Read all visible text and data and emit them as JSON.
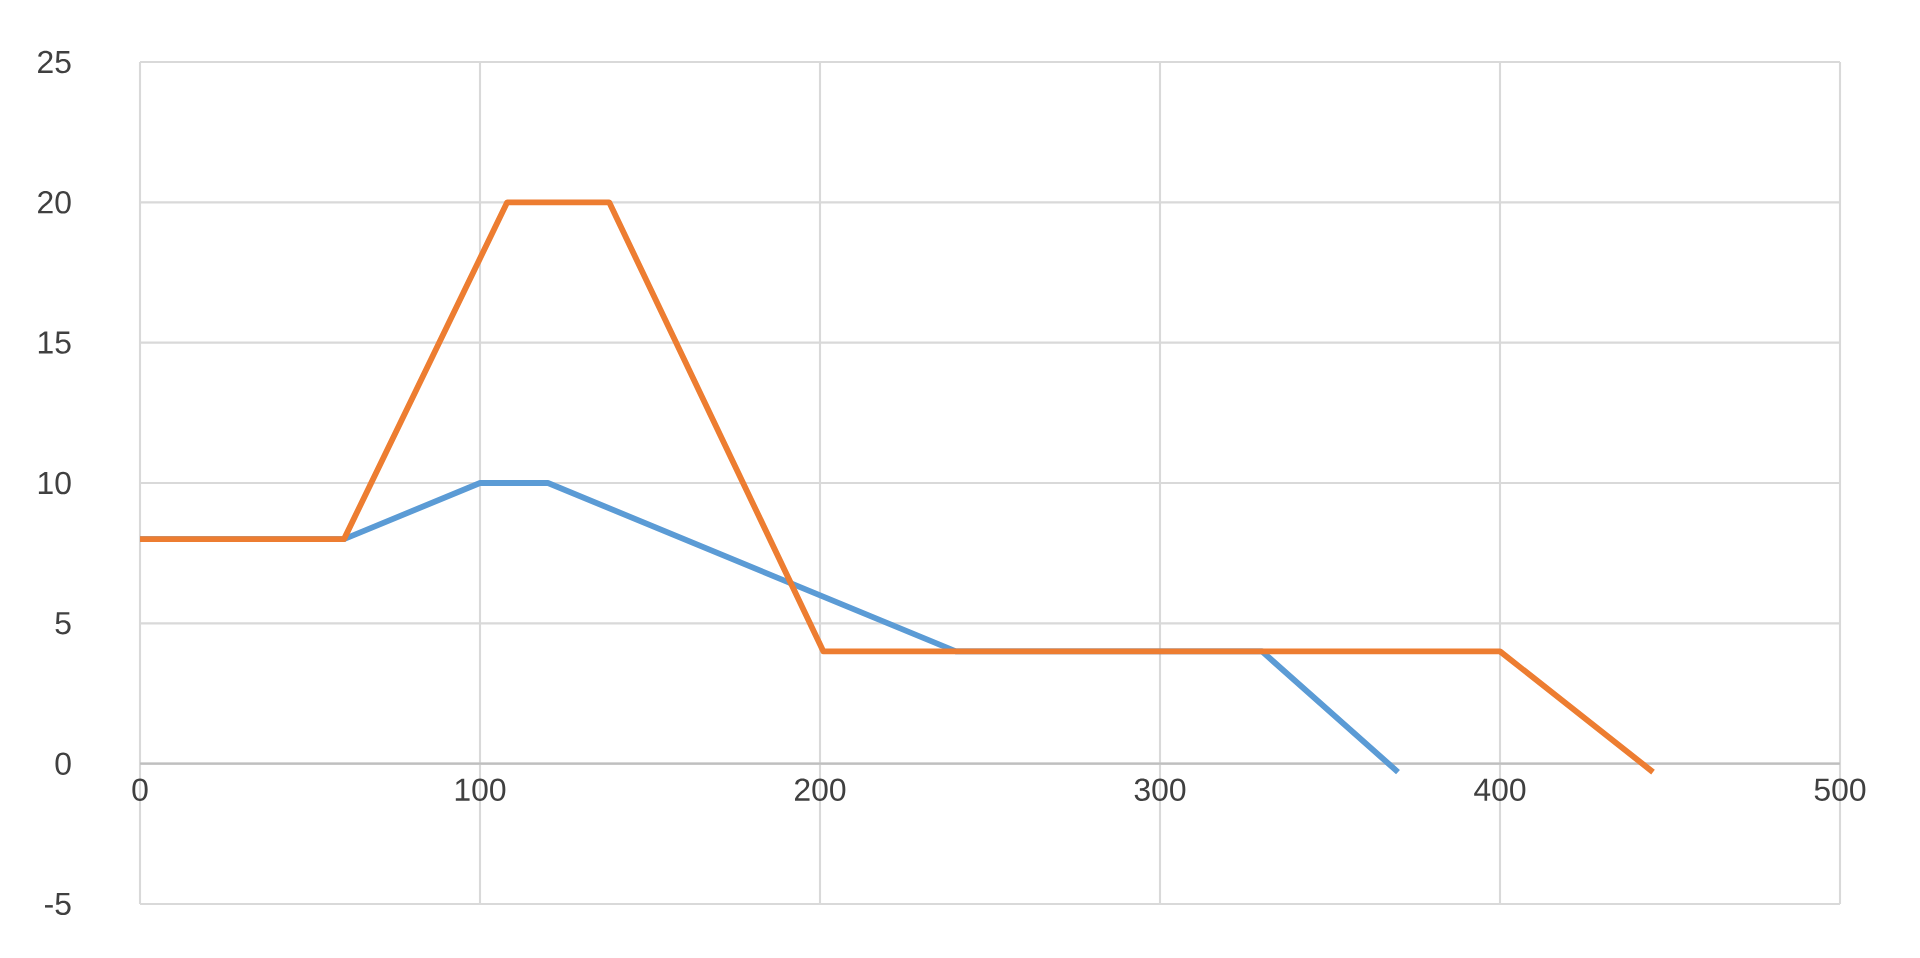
{
  "chart_data": {
    "type": "line",
    "series": [
      {
        "color": "#5b9bd5",
        "x": [
          0,
          60,
          100,
          120,
          240,
          330,
          370
        ],
        "values": [
          8,
          8,
          10,
          10,
          4,
          4,
          -0.3
        ]
      },
      {
        "color": "#ed7d31",
        "x": [
          0,
          60,
          108,
          138,
          201,
          400,
          445
        ],
        "values": [
          8,
          8,
          20,
          20,
          4,
          4,
          -0.3
        ]
      }
    ],
    "xlim": [
      0,
      500
    ],
    "xticks": [
      0,
      100,
      200,
      300,
      400,
      500
    ],
    "ylim": [
      -5,
      25
    ],
    "yticks": [
      -5,
      0,
      5,
      10,
      15,
      20,
      25
    ],
    "grid": true,
    "marker": "none",
    "line_style": "solid"
  }
}
